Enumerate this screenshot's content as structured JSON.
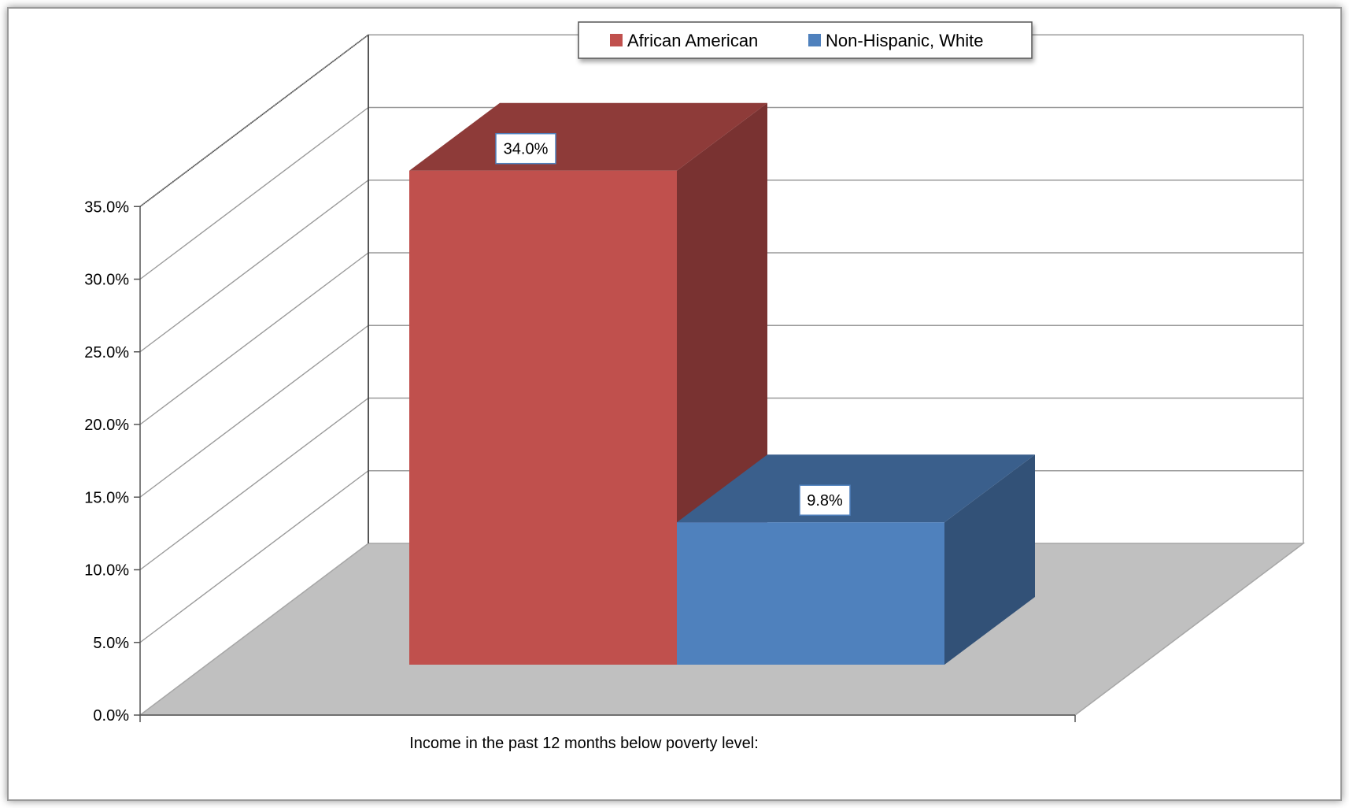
{
  "chart_data": {
    "type": "bar",
    "categories": [
      "Income in the past 12 months below poverty level:"
    ],
    "series": [
      {
        "name": "African American",
        "values": [
          34.0
        ],
        "color": "#C0504D",
        "labels": [
          "34.0%"
        ]
      },
      {
        "name": "Non-Hispanic, White",
        "values": [
          9.8
        ],
        "color": "#4F81BD",
        "labels": [
          "9.8%"
        ]
      }
    ],
    "yticks": [
      "0.0%",
      "5.0%",
      "10.0%",
      "15.0%",
      "20.0%",
      "25.0%",
      "30.0%",
      "35.0%"
    ],
    "ylim": [
      0,
      35
    ],
    "grid": true,
    "legend": "top-center",
    "three_d": true,
    "floor_color": "#C0C0C0"
  }
}
